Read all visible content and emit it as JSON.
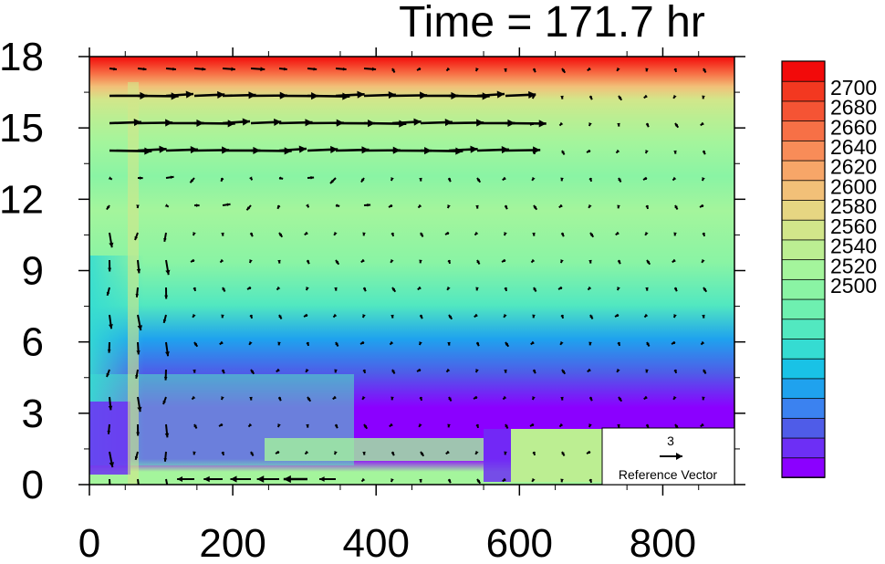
{
  "chart_data": {
    "type": "heatmap",
    "title": "Time = 171.7 hr",
    "xlabel": "",
    "ylabel": "",
    "xlim": [
      0,
      900
    ],
    "ylim": [
      0,
      18
    ],
    "x_ticks": [
      0,
      200,
      400,
      600,
      800
    ],
    "y_ticks": [
      0,
      3,
      6,
      9,
      12,
      15,
      18
    ],
    "grid": false,
    "colorbar": {
      "levels": [
        2500,
        2510,
        2520,
        2530,
        2540,
        2550,
        2560,
        2570,
        2580,
        2590,
        2600,
        2610,
        2620,
        2630,
        2640,
        2650,
        2660,
        2670,
        2680,
        2690,
        2700
      ],
      "labels": [
        "2700",
        "2680",
        "2660",
        "2640",
        "2620",
        "2600",
        "2580",
        "2560",
        "2540",
        "2520",
        "2500"
      ],
      "colors": [
        "#8b00ff",
        "#6d2ff5",
        "#4f5ce8",
        "#3b82f0",
        "#1fa2ee",
        "#19c2e6",
        "#35dcd2",
        "#52e8c0",
        "#6ef0b0",
        "#8af4a4",
        "#a4f59c",
        "#bcee92",
        "#d2e68a",
        "#e6d682",
        "#f2c078",
        "#f7a668",
        "#f88c58",
        "#f77046",
        "#f55434",
        "#f33820",
        "#f20a0a"
      ],
      "placement": "right"
    },
    "reference_vector": {
      "magnitude": "3",
      "label": "Reference Vector"
    },
    "field_description": "contoured scalar with overlaid wind vectors"
  }
}
